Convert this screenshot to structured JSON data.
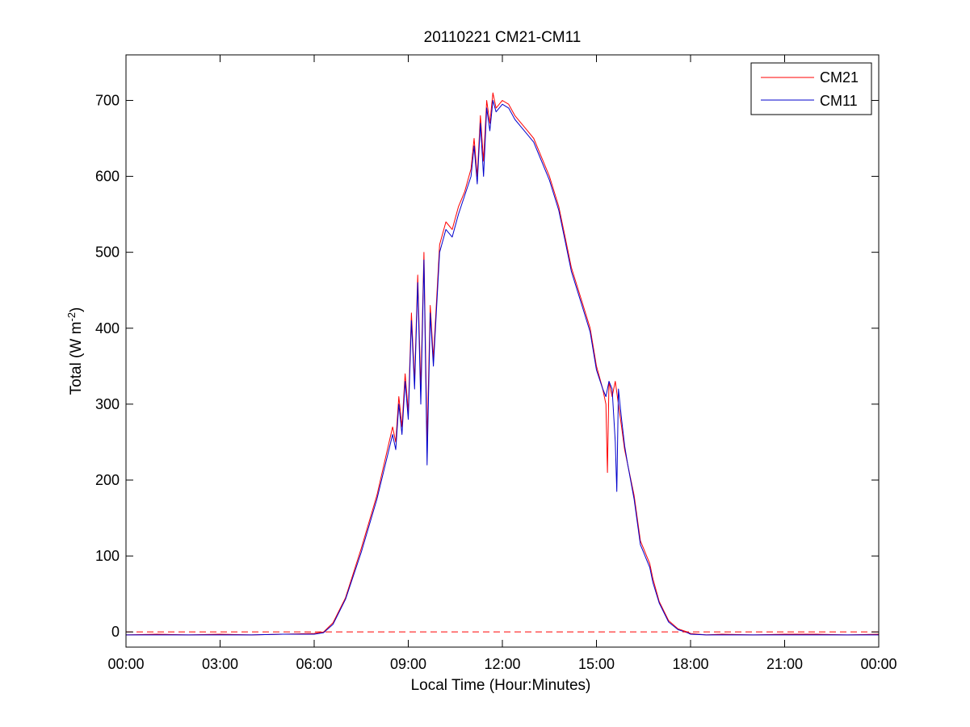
{
  "chart_data": {
    "type": "line",
    "title": "20110221 CM21-CM11",
    "xlabel": "Local Time (Hour:Minutes)",
    "ylabel": "Total (W m-2)",
    "ylabel_parts": {
      "main": "Total (W m",
      "sup": "-2",
      "end": ")"
    },
    "xlim": [
      0,
      24
    ],
    "ylim": [
      -20,
      760
    ],
    "x_ticks": [
      0,
      3,
      6,
      9,
      12,
      15,
      18,
      21,
      24
    ],
    "x_tick_labels": [
      "00:00",
      "03:00",
      "06:00",
      "09:00",
      "12:00",
      "15:00",
      "18:00",
      "21:00",
      "00:00"
    ],
    "y_ticks": [
      0,
      100,
      200,
      300,
      400,
      500,
      600,
      700
    ],
    "y_tick_labels": [
      "0",
      "100",
      "200",
      "300",
      "400",
      "500",
      "600",
      "700"
    ],
    "grid": false,
    "legend_position": "top-right",
    "reference_line": {
      "y": 0,
      "style": "dashed",
      "color": "#ff0000"
    },
    "series": [
      {
        "name": "CM21",
        "color": "#ff0000",
        "x": [
          0,
          1,
          2,
          3,
          4,
          5,
          6,
          6.3,
          6.6,
          7,
          7.5,
          8,
          8.5,
          8.6,
          8.7,
          8.8,
          8.9,
          9.0,
          9.1,
          9.2,
          9.3,
          9.4,
          9.5,
          9.6,
          9.7,
          9.8,
          10.0,
          10.2,
          10.4,
          10.6,
          10.8,
          11.0,
          11.1,
          11.2,
          11.3,
          11.4,
          11.5,
          11.6,
          11.7,
          11.8,
          11.9,
          12.0,
          12.2,
          12.4,
          12.6,
          12.8,
          13.0,
          13.2,
          13.5,
          13.8,
          14.0,
          14.2,
          14.5,
          14.8,
          15.0,
          15.2,
          15.3,
          15.35,
          15.4,
          15.5,
          15.6,
          15.7,
          15.8,
          15.9,
          16.0,
          16.2,
          16.4,
          16.5,
          16.6,
          16.7,
          16.8,
          17.0,
          17.3,
          17.6,
          17.9,
          18.0,
          18.5,
          19,
          20,
          21,
          22,
          23,
          24
        ],
        "y": [
          -4,
          -3,
          -4,
          -3,
          -4,
          -3,
          -2,
          0,
          12,
          45,
          110,
          180,
          270,
          250,
          310,
          270,
          340,
          290,
          420,
          330,
          470,
          320,
          500,
          250,
          430,
          360,
          510,
          540,
          530,
          560,
          580,
          610,
          650,
          600,
          680,
          620,
          700,
          670,
          710,
          690,
          695,
          700,
          695,
          680,
          670,
          660,
          650,
          630,
          600,
          560,
          520,
          480,
          440,
          400,
          350,
          320,
          300,
          210,
          330,
          310,
          330,
          300,
          270,
          240,
          220,
          180,
          120,
          110,
          100,
          90,
          70,
          40,
          15,
          4,
          0,
          -2,
          -4,
          -3,
          -4,
          -3,
          -3,
          -4,
          -3
        ]
      },
      {
        "name": "CM11",
        "color": "#0000cc",
        "x": [
          0,
          1,
          2,
          3,
          4,
          5,
          6,
          6.3,
          6.6,
          7,
          7.5,
          8,
          8.5,
          8.6,
          8.7,
          8.8,
          8.9,
          9.0,
          9.1,
          9.2,
          9.3,
          9.4,
          9.5,
          9.6,
          9.7,
          9.8,
          10.0,
          10.2,
          10.4,
          10.6,
          10.8,
          11.0,
          11.1,
          11.2,
          11.3,
          11.4,
          11.5,
          11.6,
          11.7,
          11.8,
          11.9,
          12.0,
          12.2,
          12.4,
          12.6,
          12.8,
          13.0,
          13.2,
          13.5,
          13.8,
          14.0,
          14.2,
          14.5,
          14.8,
          15.0,
          15.2,
          15.3,
          15.4,
          15.5,
          15.6,
          15.65,
          15.7,
          15.8,
          15.9,
          16.0,
          16.2,
          16.4,
          16.5,
          16.6,
          16.7,
          16.8,
          17.0,
          17.3,
          17.6,
          17.9,
          18.0,
          18.5,
          19,
          20,
          21,
          22,
          23,
          24
        ],
        "y": [
          -4,
          -4,
          -4,
          -4,
          -4,
          -3,
          -3,
          -1,
          10,
          43,
          105,
          175,
          260,
          240,
          300,
          260,
          330,
          280,
          410,
          320,
          460,
          300,
          490,
          220,
          420,
          350,
          500,
          530,
          520,
          550,
          575,
          600,
          640,
          590,
          670,
          600,
          690,
          660,
          700,
          685,
          690,
          695,
          690,
          675,
          665,
          655,
          645,
          625,
          595,
          555,
          515,
          475,
          435,
          395,
          345,
          320,
          310,
          330,
          320,
          250,
          185,
          320,
          280,
          245,
          220,
          175,
          115,
          105,
          95,
          85,
          65,
          38,
          13,
          3,
          -1,
          -3,
          -4,
          -4,
          -4,
          -4,
          -4,
          -4,
          -4
        ]
      }
    ]
  }
}
